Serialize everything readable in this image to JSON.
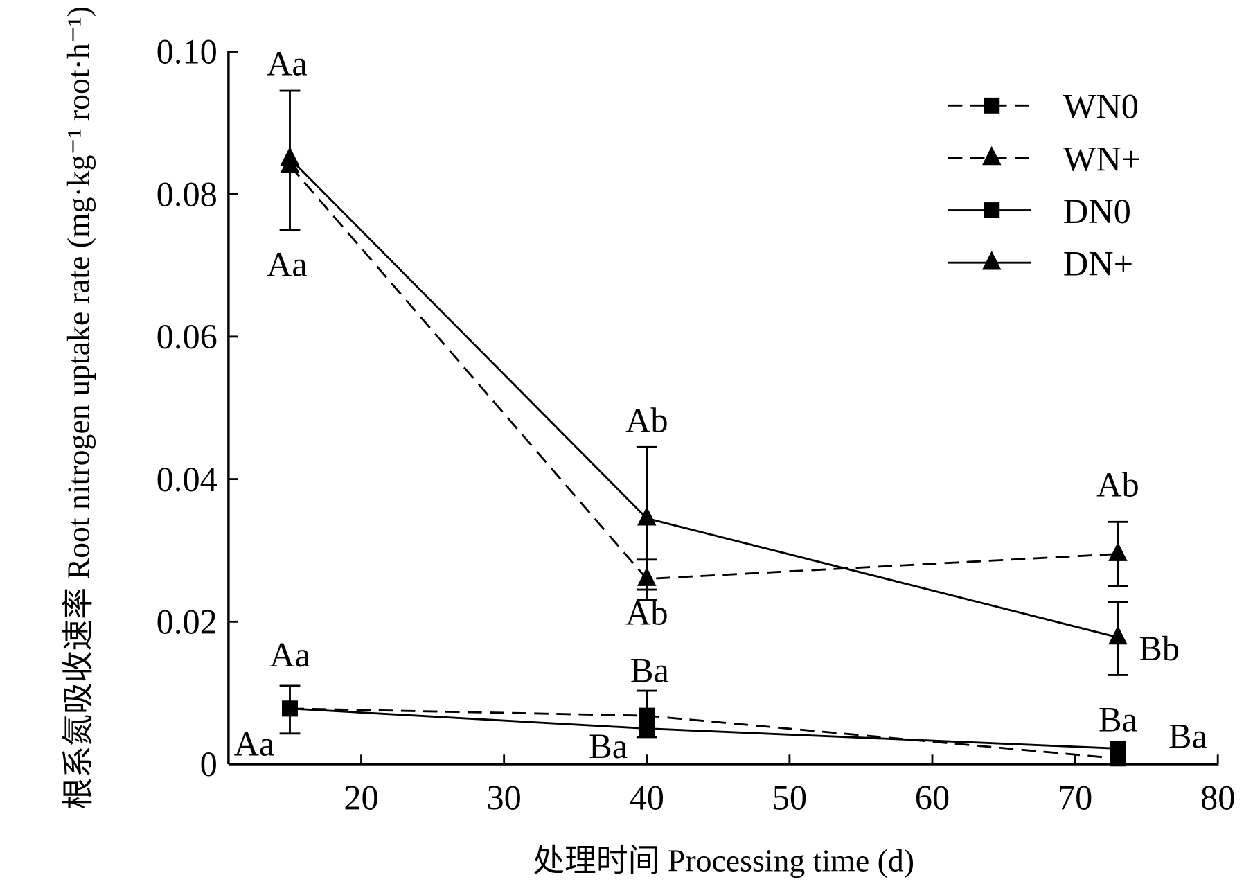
{
  "chart_data": {
    "type": "line",
    "title": "",
    "xlabel": "处理时间 Processing time (d)",
    "ylabel": "根系氮吸收速率 Root nitrogen uptake rate (mg·kg⁻¹ root·h⁻¹)",
    "xlim": [
      10.7,
      80
    ],
    "ylim": [
      0,
      0.1
    ],
    "xticks": [
      20,
      30,
      40,
      50,
      60,
      70,
      80
    ],
    "xtick_labels": [
      "20",
      "30",
      "40",
      "50",
      "60",
      "70",
      "80"
    ],
    "yticks": [
      0,
      0.02,
      0.04,
      0.06,
      0.08,
      0.1
    ],
    "ytick_labels": [
      "0",
      "0.02",
      "0.04",
      "0.06",
      "0.08",
      "0.10"
    ],
    "grid": false,
    "legend_position": "top-right",
    "x": [
      15,
      40,
      73
    ],
    "series": [
      {
        "name": "WN0",
        "line": "dashed",
        "marker": "square",
        "values": [
          0.0078,
          0.0068,
          0.0008
        ],
        "err_low": [
          null,
          null,
          null
        ],
        "err_high": [
          null,
          null,
          null
        ]
      },
      {
        "name": "WN+",
        "line": "dashed",
        "marker": "triangle",
        "values": [
          0.084,
          0.026,
          0.0295
        ],
        "err_low": [
          null,
          0.023,
          0.025
        ],
        "err_high": [
          null,
          0.0287,
          0.034
        ]
      },
      {
        "name": "DN0",
        "line": "solid",
        "marker": "square",
        "values": [
          0.0078,
          0.005,
          0.0022
        ],
        "err_low": [
          0.0043,
          0.0038,
          null
        ],
        "err_high": [
          0.011,
          0.0103,
          null
        ]
      },
      {
        "name": "DN+",
        "line": "solid",
        "marker": "triangle",
        "values": [
          0.085,
          0.0345,
          0.0178
        ],
        "err_low": [
          0.075,
          0.0245,
          0.0125
        ],
        "err_high": [
          0.0945,
          0.0445,
          0.0228
        ]
      }
    ],
    "annotations": [
      {
        "text": "Aa",
        "x": 14.8,
        "y": 0.0967
      },
      {
        "text": "Aa",
        "x": 14.8,
        "y": 0.0685
      },
      {
        "text": "Ab",
        "x": 40,
        "y": 0.0466
      },
      {
        "text": "Ab",
        "x": 40,
        "y": 0.0196
      },
      {
        "text": "Ab",
        "x": 73,
        "y": 0.0376
      },
      {
        "text": "Bb",
        "x": 75.9,
        "y": 0.0146
      },
      {
        "text": "Aa",
        "x": 15,
        "y": 0.0137
      },
      {
        "text": "Ba",
        "x": 40.2,
        "y": 0.0115
      },
      {
        "text": "Ba",
        "x": 73,
        "y": 0.0046
      },
      {
        "text": "Ba",
        "x": 77.9,
        "y": 0.0023
      },
      {
        "text": "Aa",
        "x": 12.5,
        "y": 0.0012
      },
      {
        "text": "Ba",
        "x": 37.3,
        "y": 0.0009
      }
    ]
  }
}
